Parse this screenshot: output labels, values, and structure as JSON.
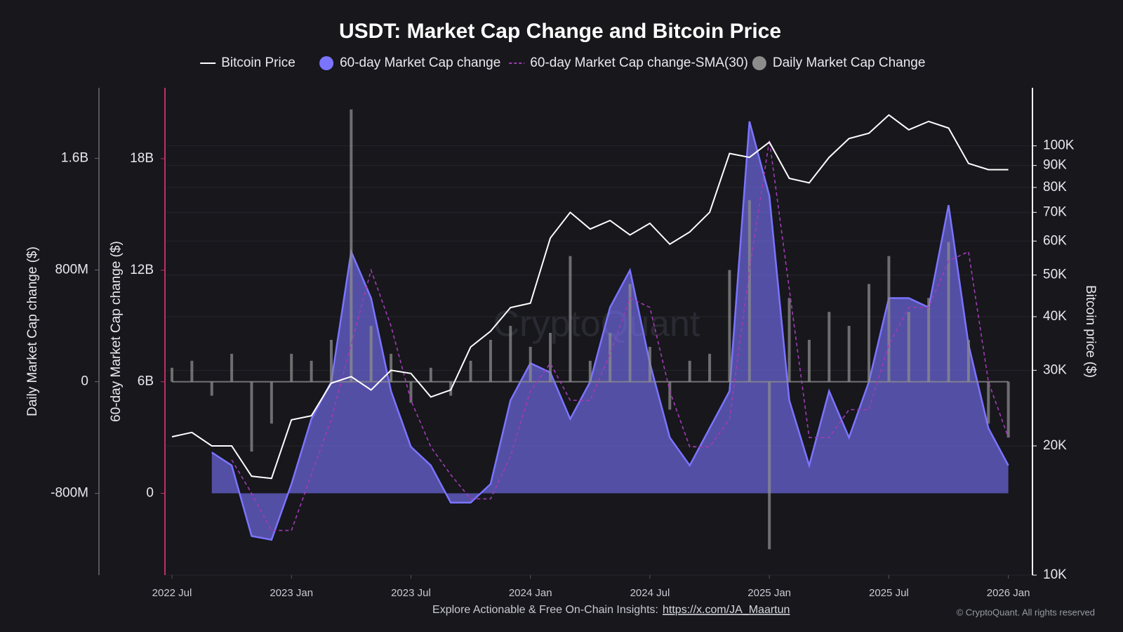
{
  "chart_data": {
    "type": "combo",
    "title": "USDT: Market Cap Change and Bitcoin Price",
    "watermark": "CryptoQuant",
    "x": [
      "2022-07",
      "2022-08",
      "2022-09",
      "2022-10",
      "2022-11",
      "2022-12",
      "2023-01",
      "2023-02",
      "2023-03",
      "2023-04",
      "2023-05",
      "2023-06",
      "2023-07",
      "2023-08",
      "2023-09",
      "2023-10",
      "2023-11",
      "2023-12",
      "2024-01",
      "2024-02",
      "2024-03",
      "2024-04",
      "2024-05",
      "2024-06",
      "2024-07",
      "2024-08",
      "2024-09",
      "2024-10",
      "2024-11",
      "2024-12",
      "2025-01",
      "2025-02",
      "2025-03",
      "2025-04",
      "2025-05",
      "2025-06",
      "2025-07",
      "2025-08",
      "2025-09",
      "2025-10",
      "2025-11",
      "2025-12",
      "2026-01"
    ],
    "xlim": [
      "2022-07",
      "2026-02"
    ],
    "xticks": [
      {
        "value": "2022-07",
        "label": "2022 Jul"
      },
      {
        "value": "2023-01",
        "label": "2023 Jan"
      },
      {
        "value": "2023-07",
        "label": "2023 Jul"
      },
      {
        "value": "2024-01",
        "label": "2024 Jan"
      },
      {
        "value": "2024-07",
        "label": "2024 Jul"
      },
      {
        "value": "2025-01",
        "label": "2025 Jan"
      },
      {
        "value": "2025-07",
        "label": "2025 Jul"
      },
      {
        "value": "2026-01",
        "label": "2026 Jan"
      }
    ],
    "ylabel": "60-day Market Cap change ($)",
    "ylim": [
      -4400000000.0,
      21700000000.0
    ],
    "yticks": [
      0,
      {
        "value": 6000000000.0,
        "label": "6B"
      },
      {
        "value": 12000000000.0,
        "label": "12B"
      },
      {
        "value": 18000000000.0,
        "label": "18B"
      }
    ],
    "y2label": "Bitcoin price ($)",
    "y2lim": [
      10000,
      135000
    ],
    "y2log": true,
    "y2ticks": [
      {
        "value": 10000,
        "label": "10K"
      },
      {
        "value": 20000,
        "label": "20K"
      },
      {
        "value": 30000,
        "label": "30K"
      },
      {
        "value": 40000,
        "label": "40K"
      },
      {
        "value": 50000,
        "label": "50K"
      },
      {
        "value": 60000,
        "label": "60K"
      },
      {
        "value": 70000,
        "label": "70K"
      },
      {
        "value": 80000,
        "label": "80K"
      },
      {
        "value": 90000,
        "label": "90K"
      },
      {
        "value": 100000,
        "label": "100K"
      }
    ],
    "y3label": "Daily Market Cap change ($)",
    "y3lim": [
      -1385000000.0,
      2090000000.0
    ],
    "y3ticks": [
      {
        "value": -800000000.0,
        "label": "-800M"
      },
      0,
      {
        "value": 800000000.0,
        "label": "800M"
      },
      {
        "value": 1600000000.0,
        "label": "1.6B"
      }
    ],
    "grid": true,
    "legend": "top",
    "series": [
      {
        "name": "Bitcoin Price",
        "kind": "line",
        "axis": "y2",
        "color": "#ffffff",
        "values": [
          21000,
          21500,
          20000,
          20000,
          17000,
          16800,
          23000,
          23500,
          28000,
          29000,
          27000,
          30000,
          29500,
          26000,
          27000,
          34000,
          37000,
          42000,
          43000,
          61000,
          70000,
          64000,
          67000,
          62000,
          66000,
          59000,
          63000,
          70000,
          96000,
          94000,
          102000,
          84000,
          82000,
          94000,
          104000,
          107000,
          118000,
          109000,
          114000,
          110000,
          91000,
          88000,
          88000
        ]
      },
      {
        "name": "60-day Market Cap change",
        "kind": "area",
        "axis": "y",
        "color": "#7b74ff",
        "values": [
          null,
          null,
          2200000000.0,
          1500000000.0,
          -2300000000.0,
          -2500000000.0,
          500000000.0,
          4000000000.0,
          6000000000.0,
          13000000000.0,
          10500000000.0,
          5500000000.0,
          2500000000.0,
          1500000000.0,
          -500000000.0,
          -500000000.0,
          500000000.0,
          5000000000.0,
          7000000000.0,
          6500000000.0,
          4000000000.0,
          6000000000.0,
          10000000000.0,
          12000000000.0,
          7000000000.0,
          3000000000.0,
          1500000000.0,
          3500000000.0,
          5500000000.0,
          20000000000.0,
          16000000000.0,
          5000000000.0,
          1500000000.0,
          5500000000.0,
          3000000000.0,
          6000000000.0,
          10500000000.0,
          10500000000.0,
          10000000000.0,
          15500000000.0,
          8000000000.0,
          3500000000.0,
          1500000000.0
        ]
      },
      {
        "name": "60-day Market Cap change-SMA(30)",
        "kind": "line",
        "dashed": true,
        "axis": "y",
        "color": "#a23bb5",
        "values": [
          null,
          null,
          null,
          1800000000.0,
          0,
          -2000000000.0,
          -2000000000.0,
          1000000000.0,
          4000000000.0,
          8000000000.0,
          12000000000.0,
          9000000000.0,
          5000000000.0,
          2500000000.0,
          1000000000.0,
          -300000000.0,
          -300000000.0,
          2000000000.0,
          5500000000.0,
          7000000000.0,
          5000000000.0,
          5000000000.0,
          7500000000.0,
          10500000000.0,
          10000000000.0,
          5500000000.0,
          2500000000.0,
          2500000000.0,
          4000000000.0,
          12000000000.0,
          19000000000.0,
          11000000000.0,
          3000000000.0,
          3000000000.0,
          4500000000.0,
          4500000000.0,
          8000000000.0,
          10000000000.0,
          10000000000.0,
          12500000000.0,
          13000000000.0,
          6000000000.0,
          3000000000.0
        ]
      },
      {
        "name": "Daily Market Cap Change",
        "kind": "bar",
        "axis": "y3",
        "color": "#8c8c8c",
        "values": [
          100000000.0,
          150000000.0,
          -100000000.0,
          200000000.0,
          -500000000.0,
          -300000000.0,
          200000000.0,
          150000000.0,
          300000000.0,
          1950000000.0,
          400000000.0,
          200000000.0,
          -150000000.0,
          100000000.0,
          -100000000.0,
          150000000.0,
          300000000.0,
          400000000.0,
          250000000.0,
          350000000.0,
          900000000.0,
          150000000.0,
          350000000.0,
          700000000.0,
          250000000.0,
          -200000000.0,
          150000000.0,
          200000000.0,
          800000000.0,
          1300000000.0,
          -1200000000.0,
          600000000.0,
          300000000.0,
          500000000.0,
          400000000.0,
          700000000.0,
          900000000.0,
          500000000.0,
          600000000.0,
          1000000000.0,
          300000000.0,
          -300000000.0,
          -400000000.0
        ]
      }
    ]
  },
  "footer": {
    "text": "Explore Actionable & Free On-Chain Insights:",
    "link": "https://x.com/JA_Maartun",
    "copyright": "© CryptoQuant. All rights reserved"
  }
}
